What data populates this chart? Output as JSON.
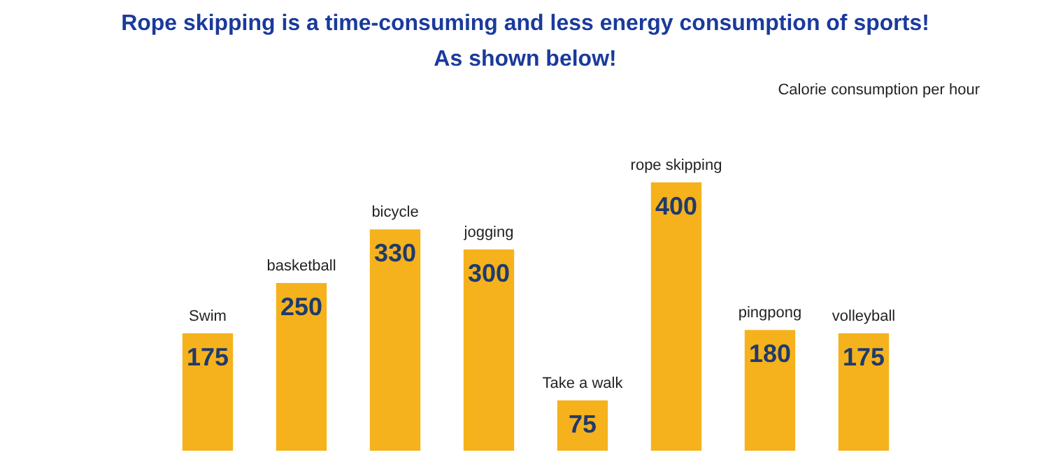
{
  "chart_data": {
    "type": "bar",
    "title": "Rope skipping is a time-consuming and less energy consumption of sports!\nAs shown below!",
    "subtitle": "Calorie consumption per hour",
    "categories": [
      "Swim",
      "basketball",
      "bicycle",
      "jogging",
      "Take a walk",
      "rope skipping",
      "pingpong",
      "volleyball"
    ],
    "values": [
      175,
      250,
      330,
      300,
      75,
      400,
      180,
      175
    ],
    "color": "#f5b21c",
    "data_labels": true,
    "grid": false
  }
}
